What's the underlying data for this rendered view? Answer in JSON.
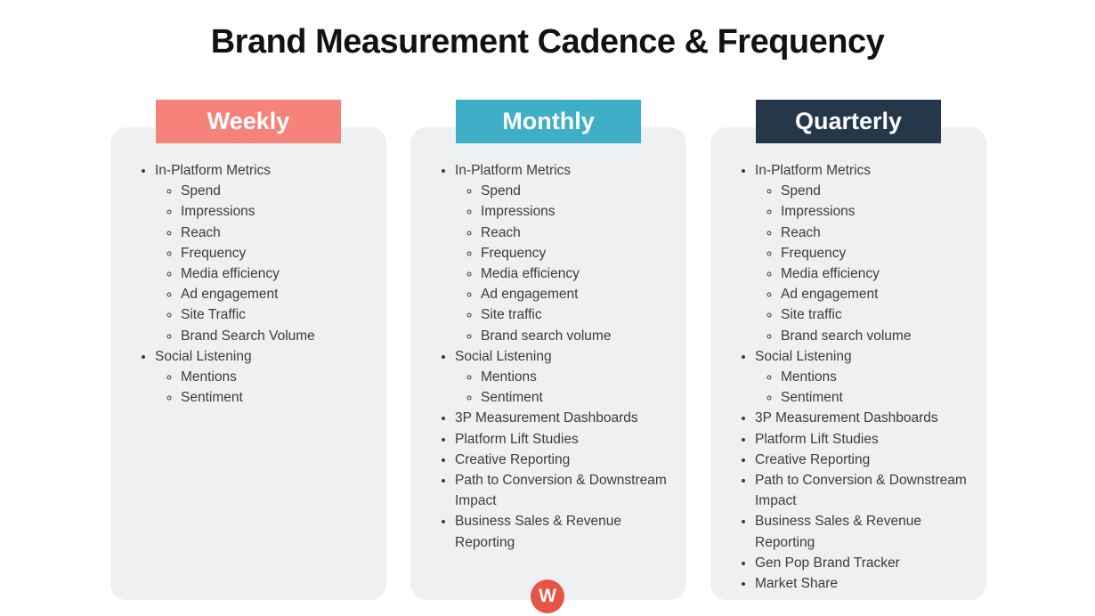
{
  "page": {
    "title": "Brand Measurement Cadence & Frequency"
  },
  "colors": {
    "weekly_header": "#f5837b",
    "monthly_header": "#3eafc7",
    "quarterly_header": "#25384a",
    "card_background": "#eef0f2",
    "header_text": "#ffffff",
    "list_text": "#3c3c3c",
    "watermark_background": "#e85442"
  },
  "watermark": {
    "letter": "W"
  },
  "columns": [
    {
      "id": "weekly",
      "label": "Weekly",
      "header_color": "#f5837b",
      "items": [
        {
          "label": "In-Platform Metrics",
          "children": [
            "Spend",
            "Impressions",
            "Reach",
            "Frequency",
            "Media efficiency",
            "Ad engagement",
            "Site Traffic",
            "Brand Search Volume"
          ]
        },
        {
          "label": "Social Listening",
          "children": [
            "Mentions",
            "Sentiment"
          ]
        }
      ]
    },
    {
      "id": "monthly",
      "label": "Monthly",
      "header_color": "#3eafc7",
      "items": [
        {
          "label": "In-Platform Metrics",
          "children": [
            "Spend",
            "Impressions",
            "Reach",
            "Frequency",
            "Media efficiency",
            "Ad engagement",
            "Site traffic",
            "Brand search volume"
          ]
        },
        {
          "label": "Social Listening",
          "children": [
            "Mentions",
            "Sentiment"
          ]
        },
        {
          "label": "3P Measurement Dashboards",
          "children": []
        },
        {
          "label": "Platform Lift Studies",
          "children": []
        },
        {
          "label": "Creative Reporting",
          "children": []
        },
        {
          "label": "Path to Conversion & Downstream Impact",
          "children": []
        },
        {
          "label": "Business Sales & Revenue Reporting",
          "children": []
        }
      ]
    },
    {
      "id": "quarterly",
      "label": "Quarterly",
      "header_color": "#25384a",
      "items": [
        {
          "label": "In-Platform Metrics",
          "children": [
            "Spend",
            "Impressions",
            "Reach",
            "Frequency",
            "Media efficiency",
            "Ad engagement",
            "Site traffic",
            "Brand search volume"
          ]
        },
        {
          "label": "Social Listening",
          "children": [
            "Mentions",
            "Sentiment"
          ]
        },
        {
          "label": "3P Measurement Dashboards",
          "children": []
        },
        {
          "label": "Platform Lift Studies",
          "children": []
        },
        {
          "label": "Creative Reporting",
          "children": []
        },
        {
          "label": "Path to Conversion & Downstream Impact",
          "children": []
        },
        {
          "label": "Business Sales & Revenue Reporting",
          "children": []
        },
        {
          "label": "Gen Pop Brand Tracker",
          "children": []
        },
        {
          "label": "Market Share",
          "children": []
        }
      ]
    }
  ]
}
